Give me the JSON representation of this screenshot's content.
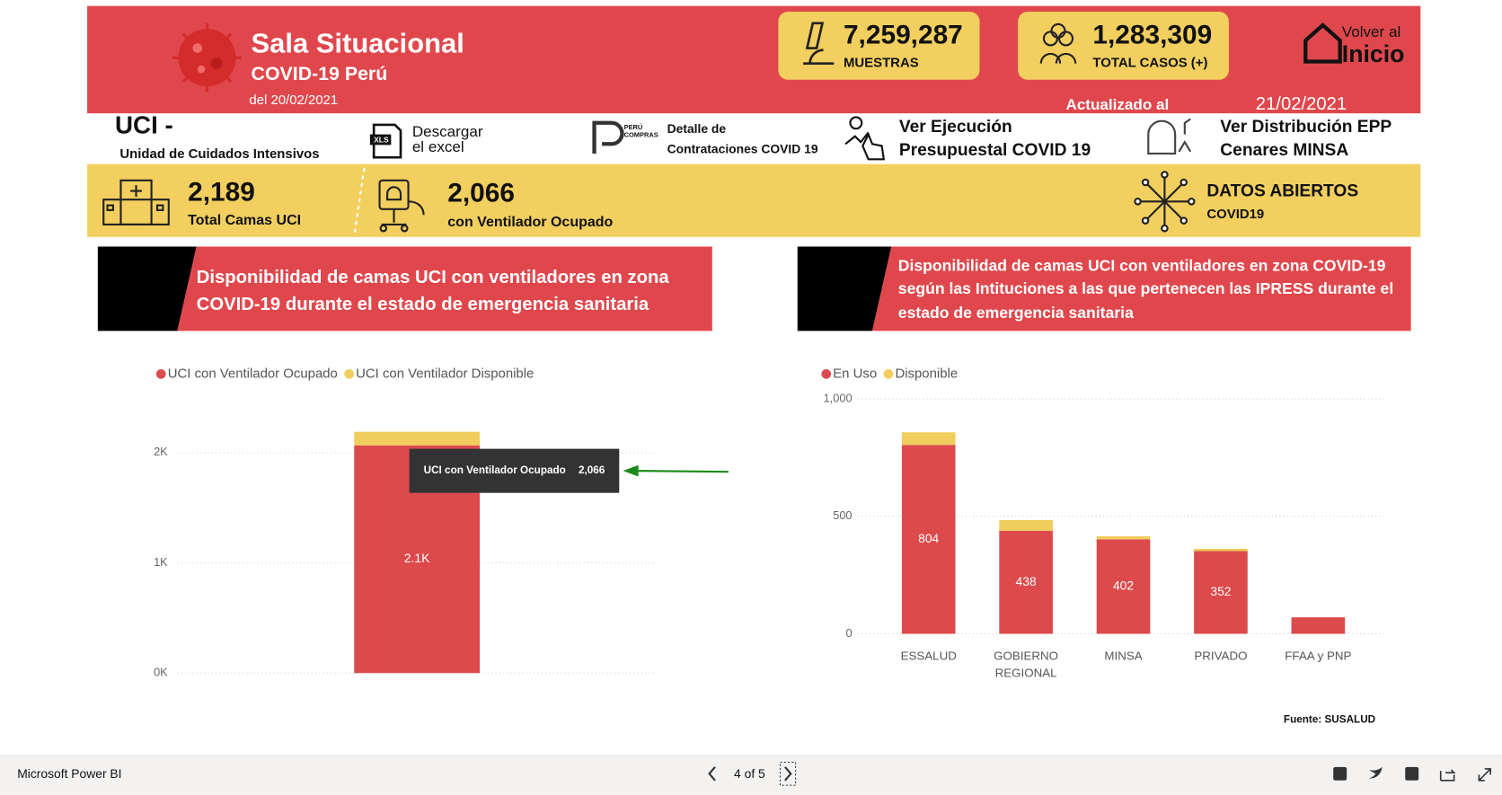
{
  "header": {
    "title": "Sala Situacional",
    "subtitle": "COVID-19 Perú",
    "date": "del 20/02/2021",
    "updated_label": "Actualizado al",
    "updated_date": "21/02/2021",
    "home_line1": "Volver al",
    "home_line2": "Inicio"
  },
  "kpis": [
    {
      "value": "7,259,287",
      "label": "MUESTRAS"
    },
    {
      "value": "1,283,309",
      "label": "TOTAL CASOS (+)"
    }
  ],
  "section": {
    "title": "UCI  -",
    "subtitle": "Unidad de Cuidados Intensivos"
  },
  "links": [
    {
      "lines": [
        "Descargar",
        "el excel"
      ]
    },
    {
      "badge": [
        "PERÚ",
        "COMPRAS"
      ],
      "lines": [
        "Detalle  de",
        "Contrataciones COVID 19"
      ]
    },
    {
      "lines": [
        "Ver Ejecución",
        "Presupuestal COVID 19"
      ]
    },
    {
      "lines": [
        "Ver Distribución EPP",
        "Cenares MINSA"
      ]
    }
  ],
  "stats": [
    {
      "value": "2,189",
      "label": "Total Camas UCI"
    },
    {
      "value": "2,066",
      "label": "con Ventilador Ocupado"
    }
  ],
  "open_data": {
    "title": "DATOS ABIERTOS",
    "subtitle": "COVID19"
  },
  "chart_data": [
    {
      "type": "bar",
      "stacked": true,
      "grid": true,
      "legend": "top-left",
      "title": [
        "Disponibilidad  de camas UCI con ventiladores en zona",
        "COVID-19 durante el estado de emergencia sanitaria"
      ],
      "categories": [
        null
      ],
      "series": [
        {
          "name": "UCI con Ventilador Ocupado",
          "color": "#dc4a4c",
          "values": [
            2066
          ],
          "value_labels": [
            "2.1K"
          ]
        },
        {
          "name": "UCI con Ventilador Disponible",
          "color": "#f0cd5c",
          "values": [
            123
          ]
        }
      ],
      "ylim": [
        0,
        2200
      ],
      "yticks": [
        {
          "value": 0,
          "label": "0K"
        },
        {
          "value": 1000,
          "label": "1K"
        },
        {
          "value": 2000,
          "label": "2K"
        }
      ],
      "tooltip": {
        "label": "UCI con Ventilador Ocupado",
        "value": "2,066"
      }
    },
    {
      "type": "bar",
      "stacked": true,
      "grid": true,
      "legend": "top-left",
      "title": [
        "Disponibilidad de camas UCI con ventiladores en zona COVID-19",
        "según las Intituciones a las que pertenecen las IPRESS durante el",
        "estado de emergencia sanitaria"
      ],
      "categories": [
        "ESSALUD",
        "GOBIERNO REGIONAL",
        "MINSA",
        "PRIVADO",
        "FFAA y PNP"
      ],
      "series": [
        {
          "name": "En Uso",
          "color": "#dc4a4c",
          "values": [
            804,
            438,
            402,
            352,
            70
          ]
        },
        {
          "name": "Disponible",
          "color": "#f0cd5c",
          "values": [
            54,
            46,
            13,
            10,
            0
          ]
        }
      ],
      "ylim": [
        0,
        1000
      ],
      "yticks": [
        0,
        500,
        {
          "value": 1000,
          "label": "1,000"
        }
      ]
    }
  ],
  "source": "Fuente: SUSALUD",
  "footer": {
    "app": "Microsoft Power BI",
    "page": "4 of 5"
  }
}
